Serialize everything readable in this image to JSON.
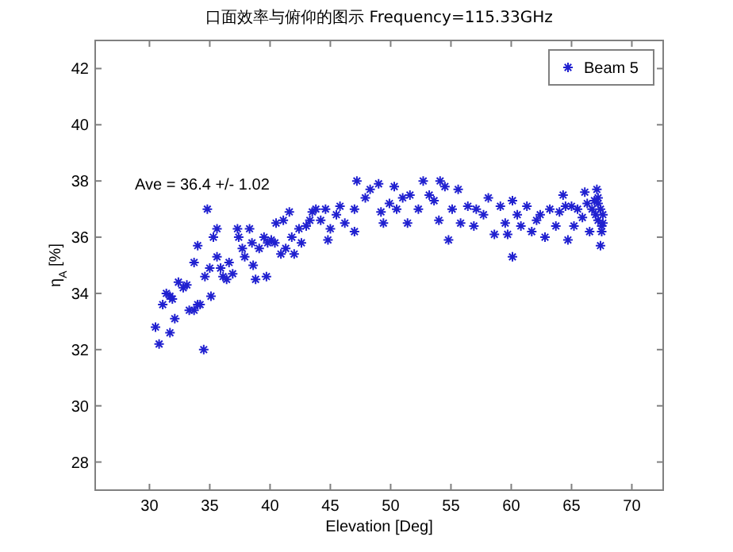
{
  "chart_data": {
    "type": "scatter",
    "title": "口面效率与俯仰的图示 Frequency=115.33GHz",
    "xlabel": "Elevation [Deg]",
    "ylabel": "η$_{A}$ [%]",
    "annotations": [
      "Ave = 36.4 +/- 1.02"
    ],
    "xlim": [
      25.5,
      72.6
    ],
    "ylim": [
      27,
      43
    ],
    "xticks": [
      30,
      35,
      40,
      45,
      50,
      55,
      60,
      65,
      70
    ],
    "yticks": [
      28,
      30,
      32,
      34,
      36,
      38,
      40,
      42
    ],
    "grid": false,
    "legend": "top right",
    "marker": "cross",
    "series": [
      {
        "name": "Beam 5",
        "color": "#2020d0",
        "x": [
          30.5,
          30.8,
          31.7,
          31.1,
          31.4,
          31.7,
          31.9,
          32.1,
          32.4,
          32.8,
          33.1,
          33.3,
          33.7,
          33.7,
          34.0,
          34.2,
          34.0,
          34.5,
          34.8,
          34.6,
          35.1,
          35.0,
          35.3,
          35.6,
          35.6,
          35.9,
          36.1,
          36.4,
          36.6,
          36.9,
          37.3,
          37.4,
          37.7,
          37.9,
          38.3,
          38.5,
          38.6,
          38.8,
          39.1,
          39.5,
          39.7,
          39.8,
          40.1,
          40.4,
          40.5,
          40.9,
          41.1,
          41.3,
          41.6,
          41.8,
          42.0,
          42.4,
          42.6,
          43.0,
          43.3,
          43.5,
          43.8,
          44.2,
          44.6,
          45.0,
          45.5,
          45.8,
          46.2,
          44.8,
          47.2,
          47.0,
          47.0,
          47.9,
          48.3,
          49.0,
          49.2,
          49.4,
          49.9,
          50.3,
          50.5,
          51.0,
          51.4,
          51.6,
          52.3,
          52.7,
          53.2,
          53.6,
          54.0,
          54.1,
          54.5,
          54.8,
          55.1,
          55.6,
          55.8,
          56.4,
          56.9,
          57.1,
          57.7,
          58.1,
          58.6,
          59.1,
          59.5,
          59.7,
          60.1,
          60.1,
          60.5,
          60.8,
          61.3,
          61.7,
          62.1,
          62.4,
          62.8,
          63.2,
          63.7,
          64.0,
          64.3,
          64.5,
          64.7,
          65.0,
          65.2,
          65.5,
          65.9,
          66.1,
          66.3,
          66.5,
          66.7,
          66.9,
          67.0,
          67.2,
          67.2,
          67.4,
          67.5,
          67.5,
          67.4,
          67.6,
          67.6,
          67.2,
          67.1
        ],
        "values": [
          32.8,
          32.2,
          32.6,
          33.6,
          34.0,
          33.9,
          33.8,
          33.1,
          34.4,
          34.2,
          34.3,
          33.4,
          33.4,
          35.1,
          33.6,
          33.6,
          35.7,
          32.0,
          37.0,
          34.6,
          33.9,
          34.9,
          36.0,
          36.3,
          35.3,
          34.9,
          34.6,
          34.5,
          35.1,
          34.7,
          36.3,
          36.0,
          35.6,
          35.3,
          36.3,
          35.8,
          35.0,
          34.5,
          35.6,
          36.0,
          34.6,
          35.8,
          35.9,
          35.8,
          36.5,
          35.4,
          36.6,
          35.6,
          36.9,
          36.0,
          35.4,
          36.3,
          35.8,
          36.4,
          36.6,
          36.9,
          37.0,
          36.6,
          37.0,
          36.3,
          36.8,
          37.1,
          36.5,
          35.9,
          38.0,
          37.0,
          36.2,
          37.4,
          37.7,
          37.9,
          36.9,
          36.5,
          37.2,
          37.8,
          37.0,
          37.4,
          36.5,
          37.5,
          37.0,
          38.0,
          37.5,
          37.3,
          36.6,
          38.0,
          37.8,
          35.9,
          37.0,
          37.7,
          36.5,
          37.1,
          36.4,
          37.0,
          36.8,
          37.4,
          36.1,
          37.1,
          36.5,
          36.1,
          37.3,
          35.3,
          36.8,
          36.4,
          37.1,
          36.2,
          36.6,
          36.8,
          36.0,
          37.0,
          36.4,
          36.9,
          37.5,
          37.1,
          35.9,
          37.1,
          36.4,
          37.0,
          36.7,
          37.6,
          37.2,
          36.2,
          37.0,
          37.3,
          36.8,
          37.2,
          36.6,
          37.0,
          36.4,
          36.2,
          35.7,
          36.8,
          36.5,
          37.4,
          37.7
        ]
      }
    ]
  }
}
